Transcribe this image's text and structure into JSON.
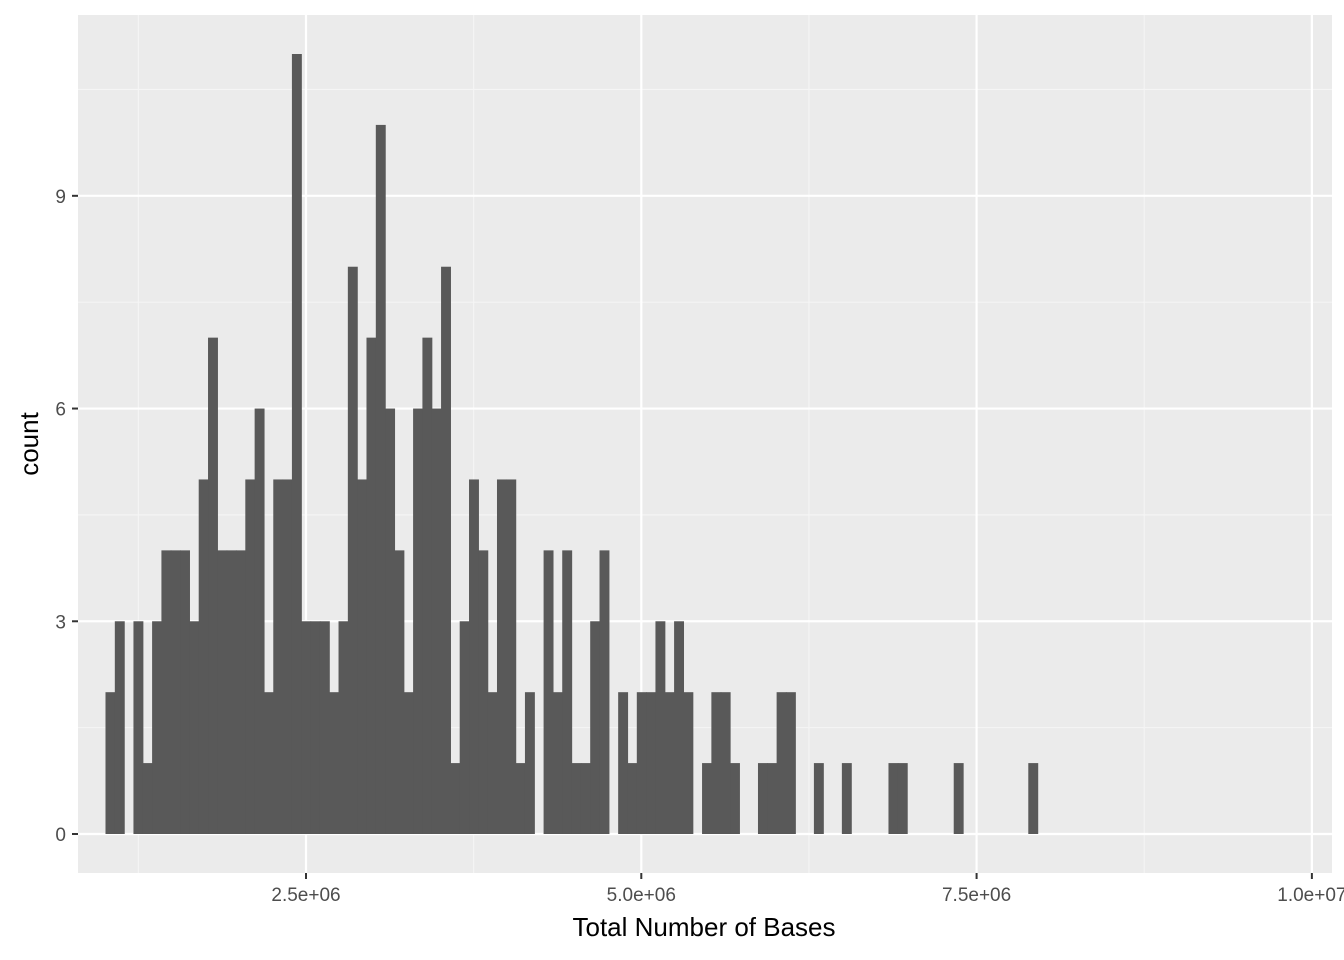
{
  "chart_data": {
    "type": "bar",
    "title": "",
    "xlabel": "Total Number of Bases",
    "ylabel": "count",
    "xlim": [
      800000,
      10150000
    ],
    "ylim": [
      -0.55,
      11.55
    ],
    "bin_width": 69500,
    "bin_start": 1005000,
    "x_ticks": [
      {
        "value": 2500000,
        "label": "2.5e+06"
      },
      {
        "value": 5000000,
        "label": "5.0e+06"
      },
      {
        "value": 7500000,
        "label": "7.5e+06"
      },
      {
        "value": 10000000,
        "label": "1.0e+07"
      }
    ],
    "y_ticks": [
      {
        "value": 0,
        "label": "0"
      },
      {
        "value": 3,
        "label": "3"
      },
      {
        "value": 6,
        "label": "6"
      },
      {
        "value": 9,
        "label": "9"
      }
    ],
    "values": [
      2,
      3,
      0,
      3,
      1,
      3,
      4,
      4,
      4,
      3,
      5,
      7,
      4,
      4,
      4,
      5,
      6,
      2,
      5,
      5,
      11,
      3,
      3,
      3,
      2,
      3,
      8,
      5,
      7,
      10,
      6,
      4,
      2,
      6,
      7,
      6,
      8,
      1,
      3,
      5,
      4,
      2,
      5,
      5,
      1,
      2,
      0,
      4,
      2,
      4,
      1,
      1,
      3,
      4,
      0,
      2,
      1,
      2,
      2,
      3,
      2,
      3,
      2,
      0,
      1,
      2,
      2,
      1,
      0,
      0,
      1,
      1,
      2,
      2,
      0,
      0,
      1,
      0,
      0,
      1,
      0,
      0,
      0,
      0,
      1,
      1,
      0,
      0,
      0,
      0,
      0,
      1,
      0,
      0,
      0,
      0,
      0,
      0,
      0,
      1
    ],
    "grid": true,
    "legend": "none",
    "colors": {
      "panel": "#EBEBEB",
      "grid_major": "#FFFFFF",
      "grid_minor": "#F5F5F5",
      "bar": "#595959",
      "tick_text": "#4D4D4D",
      "axis_title": "#000000"
    }
  }
}
